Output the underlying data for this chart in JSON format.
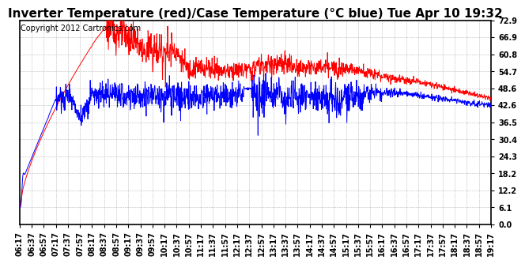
{
  "title": "Inverter Temperature (red)/Case Temperature (°C blue) Tue Apr 10 19:32",
  "copyright": "Copyright 2012 Cartronics.com",
  "yticks": [
    0.0,
    6.1,
    12.2,
    18.2,
    24.3,
    30.4,
    36.5,
    42.6,
    48.6,
    54.7,
    60.8,
    66.9,
    72.9
  ],
  "ylim": [
    0.0,
    72.9
  ],
  "xtick_labels": [
    "06:17",
    "06:37",
    "06:57",
    "07:17",
    "07:37",
    "07:57",
    "08:17",
    "08:37",
    "08:57",
    "09:17",
    "09:37",
    "09:57",
    "10:17",
    "10:37",
    "10:57",
    "11:17",
    "11:37",
    "11:57",
    "12:17",
    "12:37",
    "12:57",
    "13:17",
    "13:37",
    "13:57",
    "14:17",
    "14:37",
    "14:57",
    "15:17",
    "15:37",
    "15:57",
    "16:17",
    "16:37",
    "16:57",
    "17:17",
    "17:37",
    "17:57",
    "18:17",
    "18:37",
    "18:57",
    "19:17"
  ],
  "red_color": "#ff0000",
  "blue_color": "#0000ff",
  "bg_color": "#ffffff",
  "plot_bg_color": "#ffffff",
  "grid_color": "#aaaaaa",
  "title_fontsize": 11,
  "copyright_fontsize": 7,
  "tick_fontsize": 7,
  "line_width": 0.7
}
